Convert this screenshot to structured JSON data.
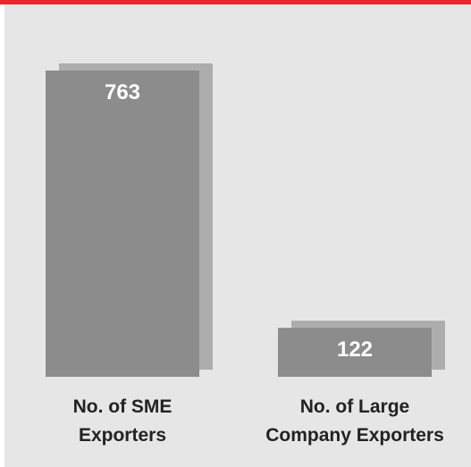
{
  "colors": {
    "accent_bar": "#e8262d",
    "plot_background": "#e6e6e6",
    "bar_fill": "#8c8c8c",
    "bar_shadow": "#9a9a9a",
    "value_label": "#ffffff",
    "category_label": "#222222"
  },
  "chart_data": {
    "type": "bar",
    "categories": [
      [
        "No. of SME",
        "Exporters"
      ],
      [
        "No. of Large",
        "Company Exporters"
      ]
    ],
    "values": [
      763,
      122
    ],
    "data_labels": [
      "763",
      "122"
    ],
    "ylim": [
      0,
      763
    ],
    "grid": false,
    "legend": "none"
  }
}
